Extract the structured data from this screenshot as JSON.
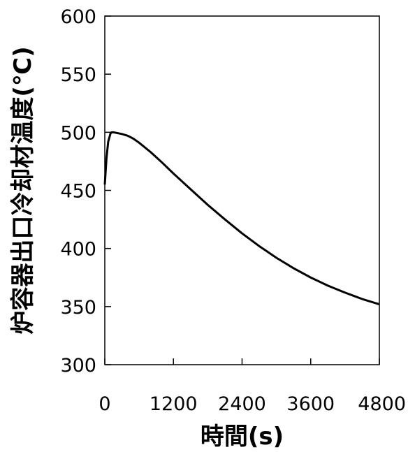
{
  "chart_data": {
    "type": "line",
    "title": "",
    "xlabel": "時間(s)",
    "ylabel": "炉容器出口冷却材温度(℃)",
    "xlim": [
      0,
      4800
    ],
    "ylim": [
      300,
      600
    ],
    "x_ticks": [
      0,
      1200,
      2400,
      3600,
      4800
    ],
    "y_ticks": [
      300,
      350,
      400,
      450,
      500,
      550,
      600
    ],
    "grid": false,
    "legend": "none",
    "colors": {
      "line": "#000000",
      "axis": "#000000"
    },
    "series": [
      {
        "x": [
          0,
          30,
          60,
          100,
          120,
          150,
          200,
          300,
          400,
          500,
          600,
          800,
          1000,
          1200,
          1500,
          1800,
          2100,
          2400,
          2700,
          3000,
          3300,
          3600,
          3900,
          4200,
          4500,
          4800
        ],
        "y": [
          455,
          478,
          492,
          499,
          500,
          500,
          499.5,
          498.5,
          497,
          494.5,
          491,
          483,
          474,
          464.5,
          451,
          437.5,
          425,
          413,
          402,
          392,
          383,
          375,
          368,
          362,
          356.5,
          352
        ]
      }
    ]
  }
}
